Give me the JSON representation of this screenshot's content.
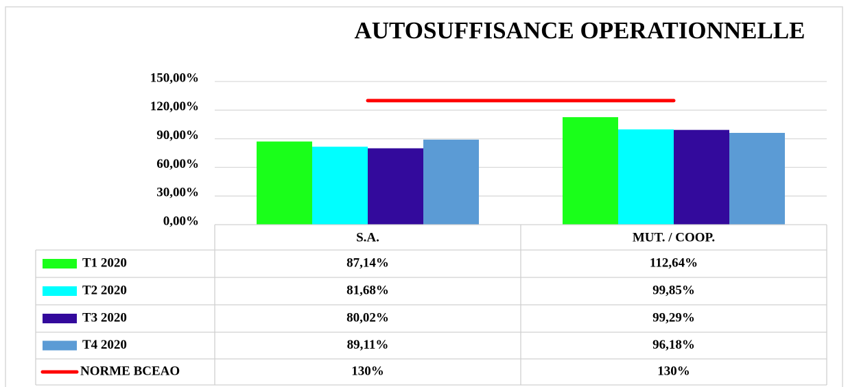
{
  "chart_data": {
    "type": "bar",
    "title": "AUTOSUFFISANCE  OPERATIONNELLE",
    "categories": [
      "S.A.",
      "MUT. / COOP."
    ],
    "ylim": [
      0,
      150
    ],
    "yticks": [
      {
        "value": 0,
        "label": "0,00%"
      },
      {
        "value": 30,
        "label": "30,00%"
      },
      {
        "value": 60,
        "label": "60,00%"
      },
      {
        "value": 90,
        "label": "90,00%"
      },
      {
        "value": 120,
        "label": "120,00%"
      },
      {
        "value": 150,
        "label": "150,00%"
      }
    ],
    "grid": true,
    "series": [
      {
        "name": "T1 2020",
        "color": "#1aff1a",
        "values": [
          87.14,
          112.64
        ],
        "value_labels": [
          "87,14%",
          "112,64%"
        ]
      },
      {
        "name": "T2 2020",
        "color": "#00ffff",
        "values": [
          81.68,
          99.85
        ],
        "value_labels": [
          "81,68%",
          "99,85%"
        ]
      },
      {
        "name": "T3 2020",
        "color": "#330a9c",
        "values": [
          80.02,
          99.29
        ],
        "value_labels": [
          "80,02%",
          "99,29%"
        ]
      },
      {
        "name": "T4 2020",
        "color": "#5b9bd5",
        "values": [
          89.11,
          96.18
        ],
        "value_labels": [
          "89,11%",
          "96,18%"
        ]
      },
      {
        "name": "NORME BCEAO",
        "type": "line",
        "color": "#ff0000",
        "values": [
          130,
          130
        ],
        "value_labels": [
          "130%",
          "130%"
        ]
      }
    ]
  }
}
